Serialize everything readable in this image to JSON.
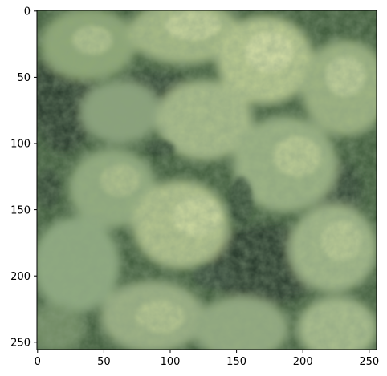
{
  "image": {
    "description_colors": {
      "canopy_light": "#b9c98f",
      "canopy_mid": "#8fa874",
      "canopy_shadow": "#3e5a3a",
      "deep_shadow": "#26382a",
      "highlight": "#d8e0a8"
    }
  },
  "axes": {
    "x_ticks": [
      "0",
      "50",
      "100",
      "150",
      "200",
      "250"
    ],
    "y_ticks": [
      "0",
      "50",
      "100",
      "150",
      "200",
      "250"
    ],
    "xlim": [
      0,
      256
    ],
    "ylim": [
      256,
      0
    ],
    "frame_color": "#000000"
  }
}
